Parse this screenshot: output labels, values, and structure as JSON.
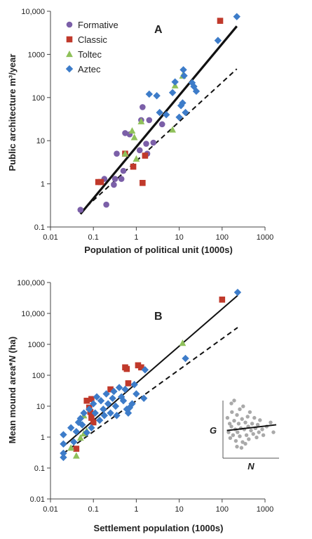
{
  "colors": {
    "formative": "#7b5fa8",
    "classic": "#c0392b",
    "toltec": "#8fc15a",
    "aztec": "#3d7cc9",
    "inset_points": "#a9a9a9",
    "fit_line": "#111111"
  },
  "chart_data": [
    {
      "type": "scatter",
      "panel_label": "A",
      "xlabel": "Population of political unit (1000s)",
      "ylabel": "Public architecture m³/year",
      "xscale": "log",
      "yscale": "log",
      "xlim": [
        0.01,
        1000
      ],
      "ylim": [
        0.1,
        10000
      ],
      "xticks": [
        "0.01",
        "0.1",
        "1",
        "10",
        "100",
        "1000"
      ],
      "yticks": [
        "0.1",
        "1",
        "10",
        "100",
        "1000",
        "10,000"
      ],
      "legend_placement": "top-left",
      "series": [
        {
          "name": "Formative",
          "marker": "circle",
          "color_key": "formative",
          "points": [
            [
              0.05,
              0.25
            ],
            [
              0.2,
              0.33
            ],
            [
              0.18,
              1.3
            ],
            [
              0.3,
              0.95
            ],
            [
              0.32,
              1.3
            ],
            [
              0.35,
              5
            ],
            [
              0.45,
              1.3
            ],
            [
              0.5,
              2
            ],
            [
              0.55,
              15
            ],
            [
              0.7,
              14
            ],
            [
              1.2,
              6
            ],
            [
              1.3,
              30
            ],
            [
              1.4,
              60
            ],
            [
              1.7,
              8.5
            ],
            [
              1.8,
              5
            ],
            [
              2,
              30
            ],
            [
              2.5,
              9
            ],
            [
              4,
              24
            ]
          ]
        },
        {
          "name": "Classic",
          "marker": "square",
          "color_key": "classic",
          "points": [
            [
              0.13,
              1.1
            ],
            [
              0.15,
              1.1
            ],
            [
              0.55,
              5
            ],
            [
              0.85,
              2.5
            ],
            [
              1.4,
              1.05
            ],
            [
              1.6,
              4.5
            ],
            [
              90,
              6000
            ]
          ]
        },
        {
          "name": "Toltec",
          "marker": "triangle",
          "color_key": "toltec",
          "points": [
            [
              0.55,
              5
            ],
            [
              0.8,
              17
            ],
            [
              0.9,
              12
            ],
            [
              1,
              3.8
            ],
            [
              1.3,
              28
            ],
            [
              7,
              18
            ],
            [
              8,
              190
            ],
            [
              12,
              320
            ]
          ]
        },
        {
          "name": "Aztec",
          "marker": "diamond",
          "color_key": "aztec",
          "points": [
            [
              2,
              120
            ],
            [
              3,
              110
            ],
            [
              3.5,
              45
            ],
            [
              5,
              40
            ],
            [
              7,
              130
            ],
            [
              8,
              230
            ],
            [
              10,
              35
            ],
            [
              11,
              65
            ],
            [
              12,
              75
            ],
            [
              12.5,
              440
            ],
            [
              13,
              320
            ],
            [
              14,
              45
            ],
            [
              20,
              220
            ],
            [
              22,
              180
            ],
            [
              25,
              140
            ],
            [
              80,
              2100
            ],
            [
              220,
              7500
            ]
          ]
        }
      ],
      "fit_lines": [
        {
          "style": "solid",
          "x": [
            0.05,
            220
          ],
          "y": [
            0.2,
            4500
          ]
        },
        {
          "style": "dashed",
          "x": [
            0.05,
            220
          ],
          "y": [
            0.22,
            460
          ]
        }
      ]
    },
    {
      "type": "scatter",
      "panel_label": "B",
      "xlabel": "Settlement population (1000s)",
      "ylabel": "Mean mound area*N (ha)",
      "ylabel_italic_part": "N",
      "xscale": "log",
      "yscale": "log",
      "xlim": [
        0.01,
        1000
      ],
      "ylim": [
        0.01,
        100000
      ],
      "xticks": [
        "0.01",
        "0.1",
        "1",
        "10",
        "100",
        "1000"
      ],
      "yticks": [
        "0.01",
        "0.1",
        "1",
        "10",
        "100",
        "1000",
        "10,000",
        "100,000"
      ],
      "series": [
        {
          "name": "Classic",
          "marker": "square",
          "color_key": "classic",
          "points": [
            [
              0.04,
              0.42
            ],
            [
              0.07,
              15
            ],
            [
              0.08,
              9
            ],
            [
              0.085,
              6.5
            ],
            [
              0.09,
              17
            ],
            [
              0.09,
              4.2
            ],
            [
              0.1,
              3
            ],
            [
              0.25,
              35
            ],
            [
              0.55,
              180
            ],
            [
              0.6,
              160
            ],
            [
              0.65,
              55
            ],
            [
              1.1,
              210
            ],
            [
              1.3,
              180
            ],
            [
              100,
              28000
            ]
          ]
        },
        {
          "name": "Toltec",
          "marker": "triangle",
          "color_key": "toltec",
          "points": [
            [
              0.03,
              0.45
            ],
            [
              0.04,
              0.25
            ],
            [
              0.05,
              0.95
            ],
            [
              0.06,
              5
            ],
            [
              0.06,
              1.3
            ],
            [
              0.07,
              1.6
            ],
            [
              12,
              1100
            ]
          ]
        },
        {
          "name": "Aztec",
          "marker": "diamond",
          "color_key": "aztec",
          "points": [
            [
              0.02,
              0.22
            ],
            [
              0.02,
              0.3
            ],
            [
              0.02,
              0.6
            ],
            [
              0.02,
              1.2
            ],
            [
              0.03,
              2
            ],
            [
              0.035,
              0.7
            ],
            [
              0.04,
              1.5
            ],
            [
              0.045,
              3
            ],
            [
              0.05,
              4
            ],
            [
              0.055,
              2.5
            ],
            [
              0.06,
              6
            ],
            [
              0.07,
              1.4
            ],
            [
              0.08,
              8
            ],
            [
              0.09,
              2
            ],
            [
              0.1,
              12
            ],
            [
              0.11,
              6
            ],
            [
              0.12,
              20
            ],
            [
              0.14,
              3.5
            ],
            [
              0.15,
              15
            ],
            [
              0.17,
              8
            ],
            [
              0.18,
              5
            ],
            [
              0.2,
              25
            ],
            [
              0.22,
              12
            ],
            [
              0.25,
              6
            ],
            [
              0.28,
              18
            ],
            [
              0.3,
              30
            ],
            [
              0.33,
              10
            ],
            [
              0.35,
              5
            ],
            [
              0.4,
              40
            ],
            [
              0.45,
              20
            ],
            [
              0.5,
              15
            ],
            [
              0.55,
              35
            ],
            [
              0.6,
              8
            ],
            [
              0.65,
              6
            ],
            [
              0.7,
              9
            ],
            [
              0.8,
              12
            ],
            [
              0.9,
              50
            ],
            [
              1,
              25
            ],
            [
              1.5,
              18
            ],
            [
              1.6,
              150
            ],
            [
              14,
              350
            ],
            [
              230,
              48000
            ]
          ]
        }
      ],
      "fit_lines": [
        {
          "style": "solid",
          "x": [
            0.02,
            230
          ],
          "y": [
            0.5,
            38000
          ]
        },
        {
          "style": "dashed",
          "x": [
            0.02,
            230
          ],
          "y": [
            0.3,
            3500
          ]
        }
      ],
      "inset": {
        "xlabel": "N",
        "ylabel": "G",
        "points": [
          [
            0.08,
            0.7
          ],
          [
            0.1,
            0.45
          ],
          [
            0.12,
            0.6
          ],
          [
            0.13,
            0.35
          ],
          [
            0.15,
            0.55
          ],
          [
            0.16,
            0.8
          ],
          [
            0.18,
            0.4
          ],
          [
            0.2,
            0.65
          ],
          [
            0.22,
            0.5
          ],
          [
            0.23,
            0.3
          ],
          [
            0.25,
            0.75
          ],
          [
            0.26,
            0.45
          ],
          [
            0.28,
            0.6
          ],
          [
            0.3,
            0.85
          ],
          [
            0.3,
            0.38
          ],
          [
            0.32,
            0.52
          ],
          [
            0.34,
            0.68
          ],
          [
            0.35,
            0.28
          ],
          [
            0.36,
            0.9
          ],
          [
            0.38,
            0.5
          ],
          [
            0.4,
            0.62
          ],
          [
            0.42,
            0.4
          ],
          [
            0.44,
            0.72
          ],
          [
            0.45,
            0.55
          ],
          [
            0.46,
            0.33
          ],
          [
            0.48,
            0.8
          ],
          [
            0.5,
            0.48
          ],
          [
            0.52,
            0.6
          ],
          [
            0.54,
            0.42
          ],
          [
            0.56,
            0.7
          ],
          [
            0.58,
            0.52
          ],
          [
            0.6,
            0.36
          ],
          [
            0.62,
            0.58
          ],
          [
            0.64,
            0.45
          ],
          [
            0.66,
            0.66
          ],
          [
            0.7,
            0.5
          ],
          [
            0.72,
            0.4
          ],
          [
            0.78,
            0.55
          ],
          [
            0.85,
            0.62
          ],
          [
            0.9,
            0.45
          ],
          [
            0.15,
            0.95
          ],
          [
            0.25,
            0.2
          ],
          [
            0.4,
            0.25
          ],
          [
            0.2,
            1.0
          ],
          [
            0.33,
            0.18
          ]
        ],
        "fit": {
          "x": [
            0.07,
            0.95
          ],
          "y": [
            0.48,
            0.58
          ]
        }
      }
    }
  ]
}
